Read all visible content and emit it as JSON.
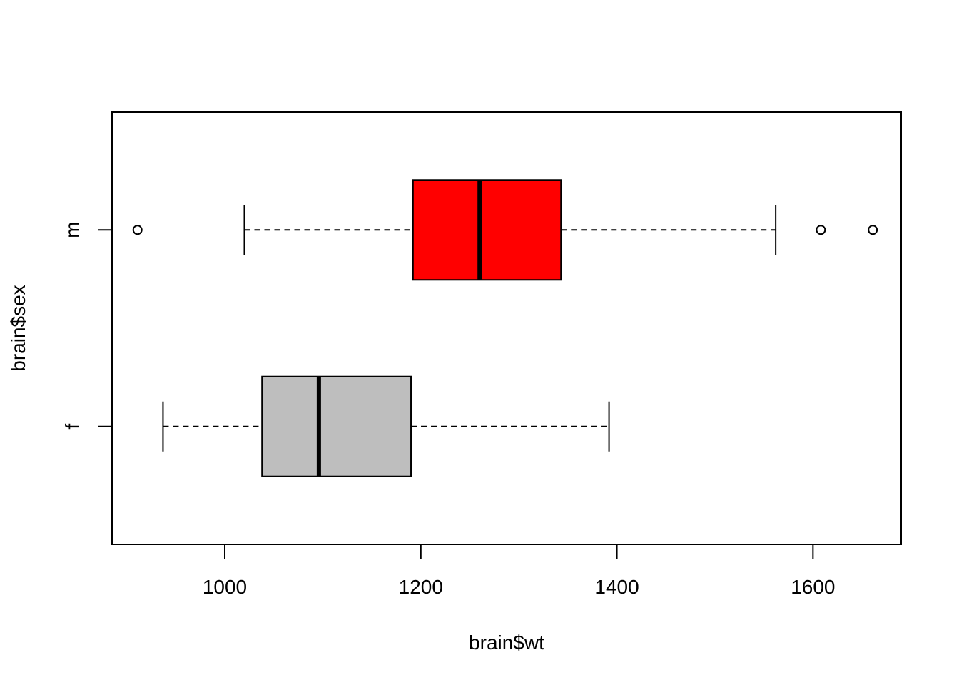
{
  "chart_data": {
    "type": "boxplot",
    "orientation": "horizontal",
    "xlabel": "brain$wt",
    "ylabel": "brain$sex",
    "xlim": [
      885,
      1690
    ],
    "xticks": [
      1000,
      1200,
      1400,
      1600
    ],
    "grid": false,
    "categories": [
      "f",
      "m"
    ],
    "series": [
      {
        "category": "f",
        "whisker_low": 937,
        "q1": 1038,
        "median": 1096,
        "q3": 1190,
        "whisker_high": 1392,
        "outliers": [],
        "fill": "#bebebe"
      },
      {
        "category": "m",
        "whisker_low": 1020,
        "q1": 1192,
        "median": 1260,
        "q3": 1343,
        "whisker_high": 1562,
        "outliers": [
          911,
          1608,
          1661
        ],
        "fill": "#ff0000"
      }
    ]
  }
}
